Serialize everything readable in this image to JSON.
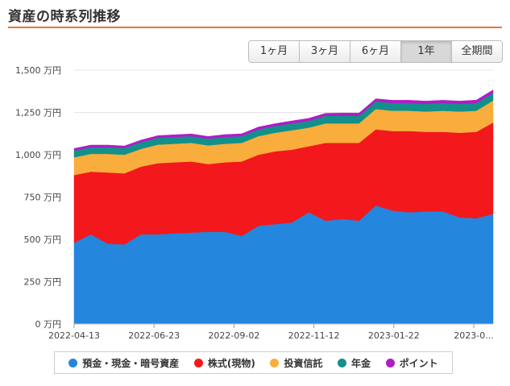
{
  "page": {
    "title": "資産の時系列推移"
  },
  "tabs": [
    {
      "label": "1ヶ月",
      "active": false
    },
    {
      "label": "3ヶ月",
      "active": false
    },
    {
      "label": "6ヶ月",
      "active": false
    },
    {
      "label": "1年",
      "active": true
    },
    {
      "label": "全期間",
      "active": false
    }
  ],
  "legend": [
    {
      "label": "預金・現金・暗号資産",
      "color": "#2586dd"
    },
    {
      "label": "株式(現物)",
      "color": "#f3181b"
    },
    {
      "label": "投資信託",
      "color": "#f9ad3c"
    },
    {
      "label": "年金",
      "color": "#13908a"
    },
    {
      "label": "ポイント",
      "color": "#b11bc8"
    }
  ],
  "chart_data": {
    "type": "area",
    "stacked": true,
    "y_unit": "万円",
    "ylim": [
      0,
      1500
    ],
    "y_ticks": [
      0,
      250,
      500,
      750,
      1000,
      1250,
      1500
    ],
    "y_tick_labels": [
      "0 万円",
      "250 万円",
      "500 万円",
      "750 万円",
      "1,000 万円",
      "1,250 万円",
      "1,500 万円"
    ],
    "x_tick_labels": [
      "2022-04-13",
      "2022-06-23",
      "2022-09-02",
      "2022-11-12",
      "2023-01-22",
      "2023-0..."
    ],
    "grid": true,
    "x": [
      "2022-04-13",
      "2022-04-27",
      "2022-05-11",
      "2022-05-25",
      "2022-06-08",
      "2022-06-23",
      "2022-07-07",
      "2022-07-21",
      "2022-08-04",
      "2022-08-18",
      "2022-09-02",
      "2022-09-16",
      "2022-09-30",
      "2022-10-14",
      "2022-10-28",
      "2022-11-12",
      "2022-11-26",
      "2022-12-10",
      "2022-12-24",
      "2023-01-07",
      "2023-01-22",
      "2023-02-05",
      "2023-02-19",
      "2023-03-05",
      "2023-03-19",
      "2023-04-02"
    ],
    "series": [
      {
        "name": "預金・現金・暗号資産",
        "color": "#2586dd",
        "values": [
          480,
          530,
          475,
          470,
          530,
          530,
          535,
          540,
          545,
          545,
          520,
          580,
          590,
          600,
          660,
          610,
          620,
          610,
          700,
          670,
          660,
          665,
          665,
          630,
          625,
          650
        ]
      },
      {
        "name": "株式(現物)",
        "color": "#f3181b",
        "values": [
          400,
          370,
          420,
          420,
          400,
          420,
          420,
          420,
          400,
          410,
          440,
          420,
          430,
          430,
          390,
          460,
          450,
          460,
          450,
          470,
          480,
          470,
          470,
          500,
          510,
          540
        ]
      },
      {
        "name": "投資信託",
        "color": "#f9ad3c",
        "values": [
          105,
          105,
          110,
          110,
          105,
          110,
          110,
          110,
          110,
          110,
          110,
          110,
          110,
          115,
          110,
          115,
          115,
          115,
          120,
          120,
          120,
          120,
          125,
          125,
          125,
          130
        ]
      },
      {
        "name": "年金",
        "color": "#13908a",
        "values": [
          40,
          40,
          40,
          40,
          40,
          40,
          40,
          40,
          40,
          40,
          40,
          40,
          40,
          40,
          40,
          45,
          45,
          45,
          45,
          45,
          45,
          45,
          45,
          45,
          45,
          45
        ]
      },
      {
        "name": "ポイント",
        "color": "#b11bc8",
        "values": [
          12,
          12,
          12,
          12,
          12,
          13,
          13,
          13,
          13,
          14,
          14,
          14,
          14,
          15,
          15,
          15,
          16,
          16,
          16,
          17,
          17,
          17,
          17,
          17,
          18,
          18
        ]
      }
    ]
  }
}
